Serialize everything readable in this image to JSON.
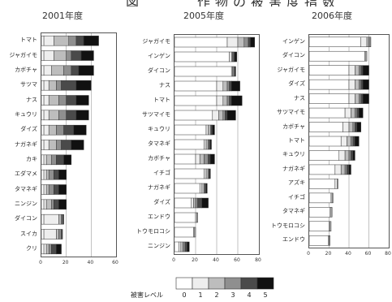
{
  "header": {
    "title": "図　　　作物の被害度指数"
  },
  "legend": {
    "label": "被害レベル",
    "levels": [
      "0",
      "1",
      "2",
      "3",
      "4",
      "5"
    ],
    "colors": [
      "#ffffff",
      "#eeeeee",
      "#bdbdbd",
      "#8f8f8f",
      "#4a4a4a",
      "#111111"
    ]
  },
  "chart_data": [
    {
      "type": "bar",
      "title": "2001年度",
      "orientation": "horizontal",
      "stacked": true,
      "xlim": [
        0,
        60
      ],
      "xticks": [
        "0",
        "20",
        "40",
        "60"
      ],
      "categories": [
        "トマト",
        "ジャガイモ",
        "カボチャ",
        "サツマ",
        "ナス",
        "キュウリ",
        "ダイズ",
        "ナガネギ",
        "カキ",
        "エダマメ",
        "タマネギ",
        "ニンジン",
        "ダイコン",
        "スイカ",
        "クリ"
      ],
      "stack_levels": [
        "0",
        "1",
        "2",
        "3",
        "4",
        "5"
      ],
      "values": [
        [
          2,
          8,
          12,
          6,
          6,
          12
        ],
        [
          2,
          8,
          10,
          4,
          8,
          10
        ],
        [
          2,
          6,
          10,
          6,
          6,
          12
        ],
        [
          2,
          4,
          6,
          4,
          12,
          12
        ],
        [
          2,
          4,
          8,
          6,
          8,
          10
        ],
        [
          2,
          4,
          8,
          6,
          8,
          10
        ],
        [
          2,
          4,
          6,
          6,
          8,
          10
        ],
        [
          2,
          4,
          6,
          4,
          8,
          10
        ],
        [
          2,
          2,
          4,
          4,
          6,
          6
        ],
        [
          2,
          2,
          2,
          4,
          4,
          6
        ],
        [
          2,
          2,
          2,
          4,
          4,
          6
        ],
        [
          2,
          2,
          4,
          2,
          4,
          6
        ],
        [
          2,
          12,
          2,
          1,
          1,
          0
        ],
        [
          2,
          10,
          2,
          2,
          1,
          0
        ],
        [
          2,
          2,
          2,
          2,
          4,
          4
        ]
      ]
    },
    {
      "type": "bar",
      "title": "2005年度",
      "orientation": "horizontal",
      "stacked": true,
      "xlim": [
        0,
        80
      ],
      "xticks": [
        "0",
        "20",
        "40",
        "60",
        "80"
      ],
      "categories": [
        "ジャガイモ",
        "インゲン",
        "ダイコン",
        "ナス",
        "トマト",
        "サツマイモ",
        "キュウリ",
        "タマネギ",
        "カボチャ",
        "イチゴ",
        "ナガネギ",
        "ダイズ",
        "エンドウ",
        "トウモロコシ",
        "ニンジン"
      ],
      "stack_levels": [
        "0",
        "1",
        "2",
        "3",
        "4",
        "5"
      ],
      "values": [
        [
          50,
          10,
          6,
          4,
          2,
          4
        ],
        [
          52,
          2,
          1,
          1,
          1,
          2
        ],
        [
          54,
          1,
          1,
          1,
          0,
          1
        ],
        [
          40,
          6,
          4,
          2,
          2,
          8
        ],
        [
          40,
          6,
          4,
          2,
          2,
          10
        ],
        [
          36,
          6,
          4,
          2,
          2,
          8
        ],
        [
          30,
          2,
          2,
          1,
          1,
          2
        ],
        [
          28,
          2,
          2,
          1,
          1,
          1
        ],
        [
          20,
          4,
          4,
          4,
          2,
          4
        ],
        [
          28,
          2,
          2,
          1,
          0,
          1
        ],
        [
          24,
          2,
          2,
          1,
          1,
          1
        ],
        [
          16,
          2,
          2,
          2,
          4,
          6
        ],
        [
          20,
          1,
          1,
          0,
          0,
          0
        ],
        [
          18,
          1,
          1,
          0,
          0,
          0
        ],
        [
          4,
          2,
          2,
          2,
          2,
          2
        ]
      ]
    },
    {
      "type": "bar",
      "title": "2006年度",
      "orientation": "horizontal",
      "stacked": true,
      "xlim": [
        0,
        80
      ],
      "xticks": [
        "0",
        "20",
        "40",
        "60",
        "80"
      ],
      "categories": [
        "インゲン",
        "ダイコン",
        "ジャガイモ",
        "ダイズ",
        "ナス",
        "サツマイモ",
        "カボチャ",
        "トマト",
        "キュウリ",
        "ナガネギ",
        "アズキ",
        "イチゴ",
        "タマネギ",
        "トウモロコシ",
        "エンドウ"
      ],
      "stack_levels": [
        "0",
        "1",
        "2",
        "3",
        "4",
        "5"
      ],
      "values": [
        [
          52,
          6,
          2,
          2,
          0,
          0
        ],
        [
          56,
          1,
          1,
          0,
          0,
          0
        ],
        [
          40,
          6,
          4,
          2,
          2,
          6
        ],
        [
          40,
          6,
          4,
          2,
          2,
          6
        ],
        [
          40,
          6,
          4,
          2,
          2,
          6
        ],
        [
          36,
          6,
          4,
          2,
          2,
          4
        ],
        [
          34,
          6,
          4,
          2,
          2,
          4
        ],
        [
          32,
          6,
          4,
          2,
          2,
          4
        ],
        [
          30,
          6,
          4,
          2,
          2,
          2
        ],
        [
          26,
          6,
          4,
          2,
          2,
          2
        ],
        [
          26,
          2,
          1,
          0,
          0,
          0
        ],
        [
          22,
          1,
          1,
          0,
          0,
          0
        ],
        [
          21,
          1,
          1,
          0,
          0,
          0
        ],
        [
          20,
          1,
          1,
          0,
          0,
          0
        ],
        [
          19,
          1,
          1,
          0,
          0,
          0
        ]
      ]
    }
  ]
}
